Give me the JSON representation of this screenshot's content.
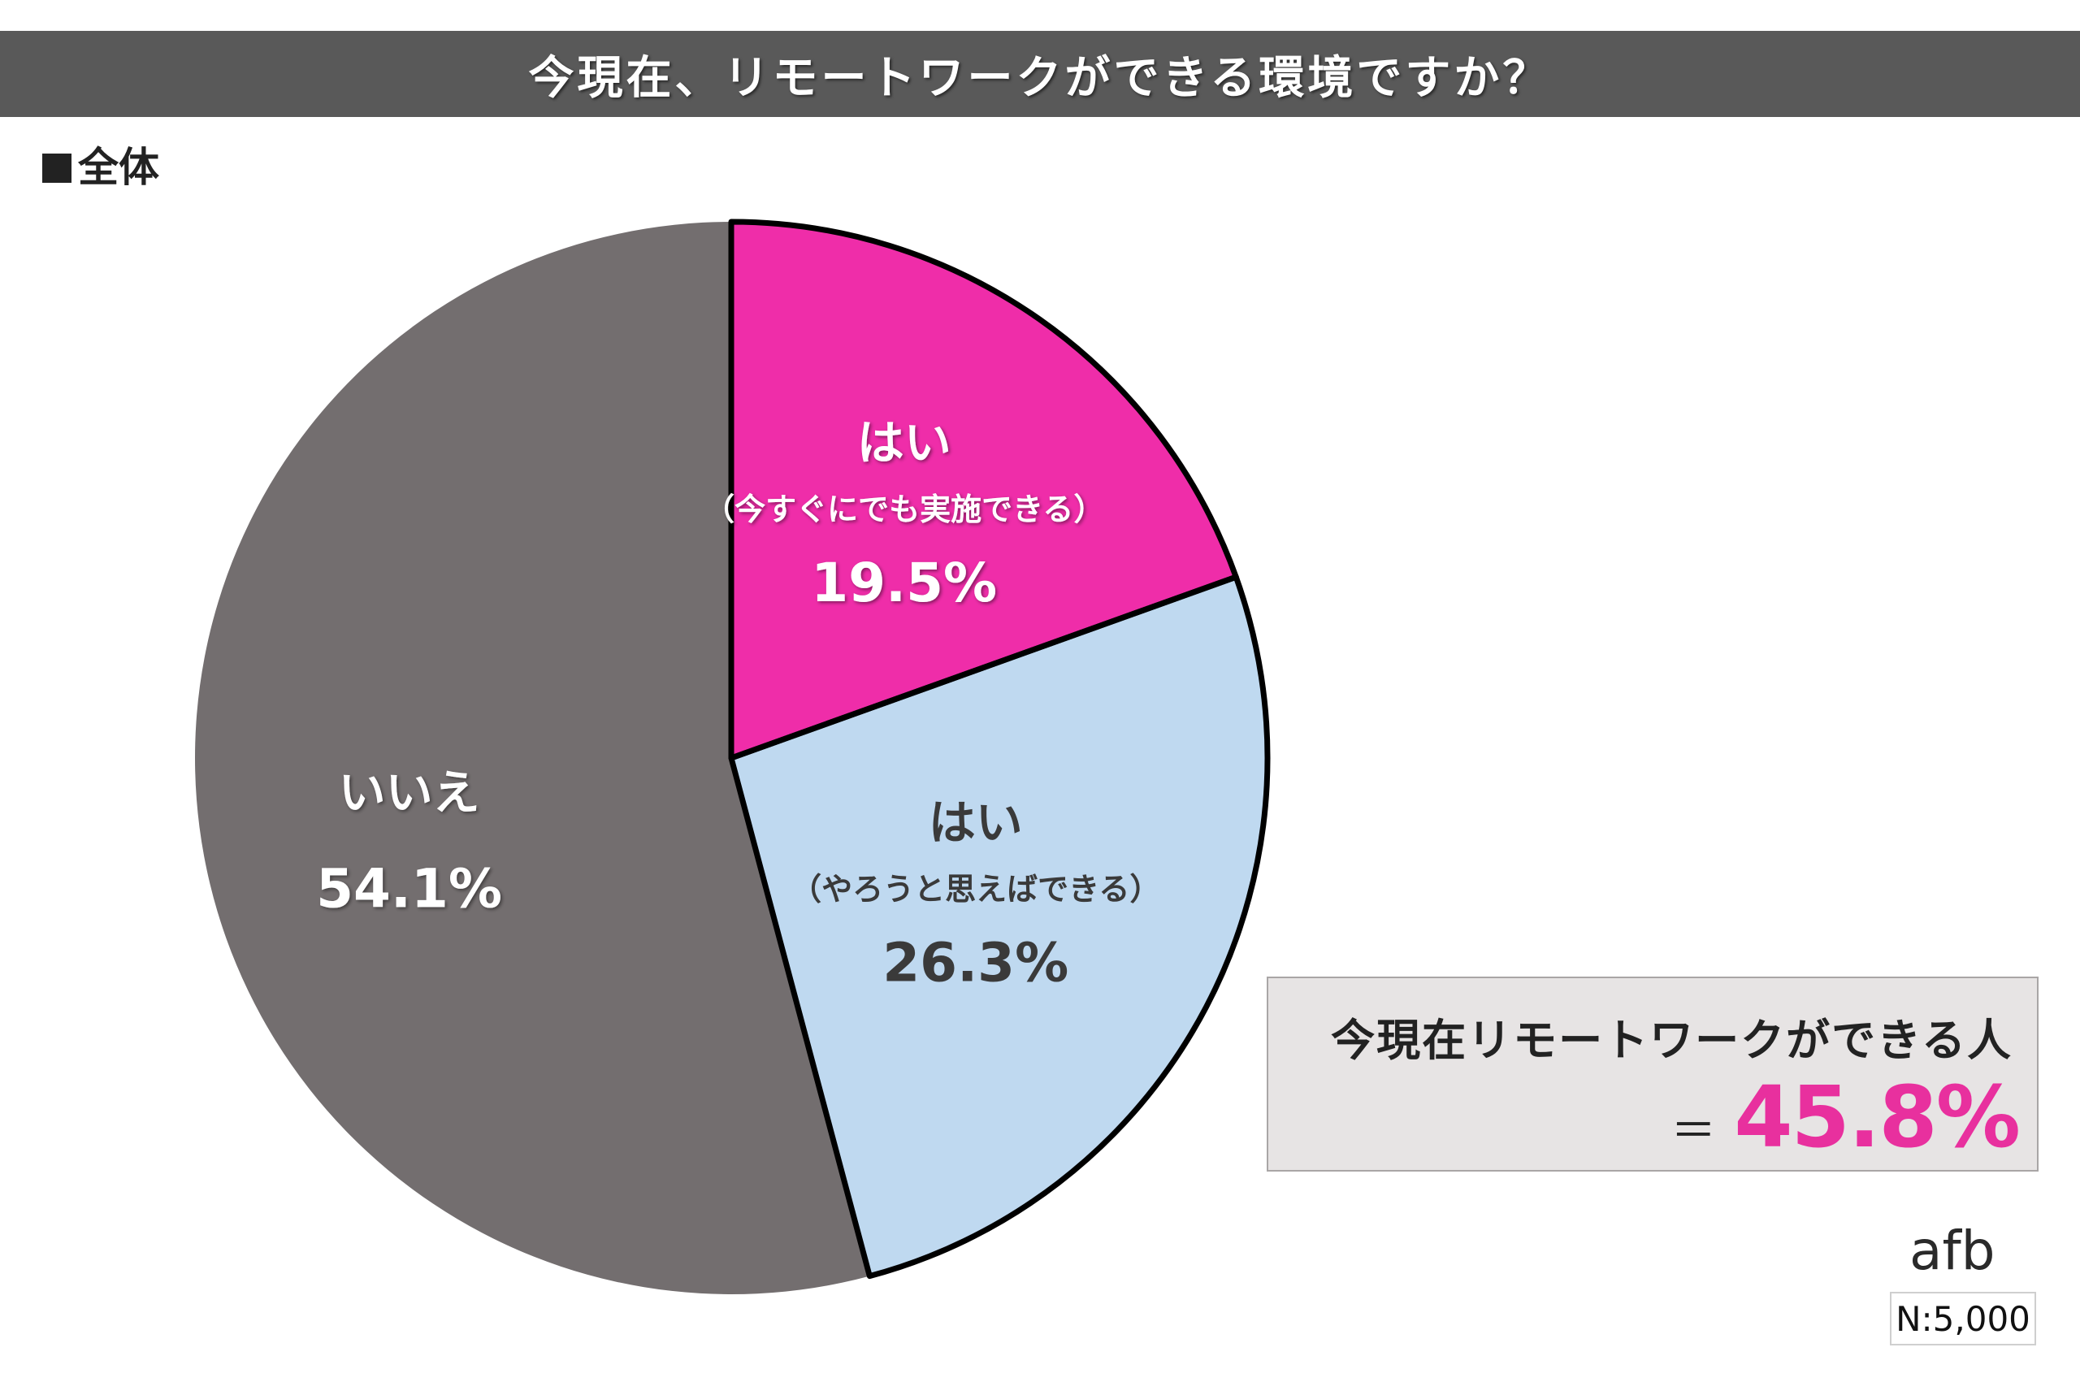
{
  "title": "今現在、リモートワークができる環境ですか？",
  "group_label": "全体",
  "summary": {
    "label": "今現在リモートワークができる人",
    "equals": "＝",
    "value": "45.8%"
  },
  "logo_text": "afb",
  "sample_size": "N:5,000",
  "colors": {
    "title_bar": "#595959",
    "pink": "#ef2da9",
    "light_blue": "#bfd9f0",
    "gray": "#736e6f",
    "summary_bg": "#e7e4e4",
    "summary_value": "#e8309e"
  },
  "chart_data": {
    "type": "pie",
    "start": "12 o'clock, clockwise",
    "slices": [
      {
        "label": "はい",
        "sublabel": "（今すぐにでも実施できる）",
        "value": 19.5,
        "value_label": "19.5%",
        "color": "#ef2da9",
        "text_color": "#ffffff",
        "outlined": true
      },
      {
        "label": "はい",
        "sublabel": "（やろうと思えばできる）",
        "value": 26.3,
        "value_label": "26.3%",
        "color": "#bfd9f0",
        "text_color": "#3a3a3a",
        "outlined": true
      },
      {
        "label": "いいえ",
        "sublabel": "",
        "value": 54.1,
        "value_label": "54.1%",
        "color": "#736e6f",
        "text_color": "#ffffff",
        "outlined": false
      }
    ]
  }
}
